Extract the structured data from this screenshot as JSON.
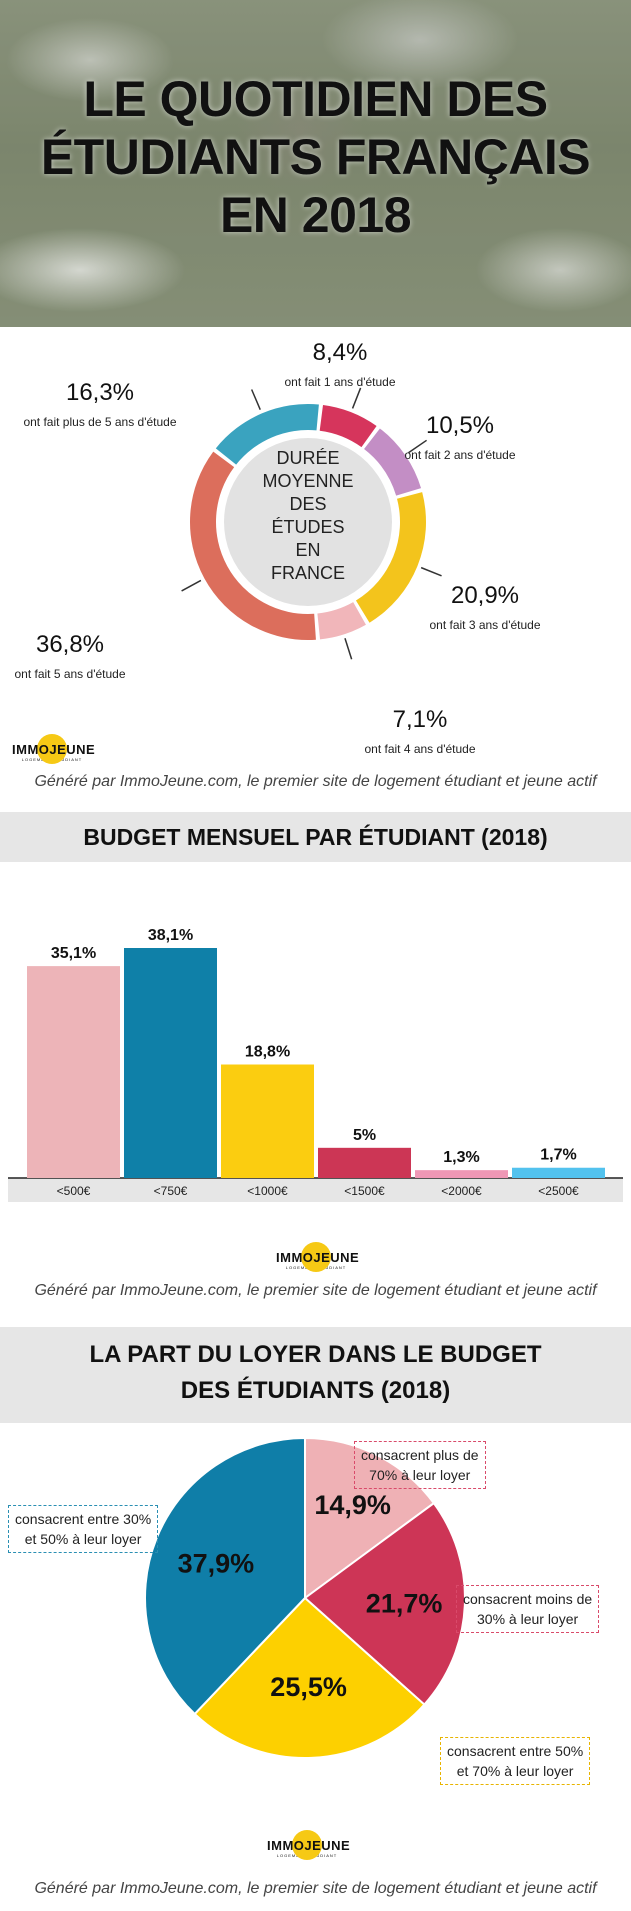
{
  "hero": {
    "title_lines": [
      "LE QUOTIDIEN  DES",
      "ÉTUDIANTS FRANÇAIS",
      "EN 2018"
    ]
  },
  "donut": {
    "center_lines": [
      "DURÉE",
      "MOYENNE",
      "DES",
      "ÉTUDES",
      "EN",
      "FRANCE"
    ]
  },
  "logo": {
    "name": "IMMOJEUNE",
    "tagline": "LOGEMENT ÉTUDIANT"
  },
  "credit": "Généré par ImmoJeune.com, le premier site de logement étudiant et jeune actif",
  "sections": {
    "budget_title": "BUDGET MENSUEL PAR ÉTUDIANT (2018)",
    "rent_title_lines": [
      "LA PART DU LOYER DANS LE BUDGET",
      "DES ÉTUDIANTS (2018)"
    ]
  },
  "chart_data": [
    {
      "type": "pie",
      "variant": "donut",
      "slices": [
        {
          "value": 8.4,
          "value_label": "8,4%",
          "label": "ont fait 1 ans d'étude",
          "color": "#d6355c"
        },
        {
          "value": 10.5,
          "value_label": "10,5%",
          "label": "ont fait 2 ans d'étude",
          "color": "#c38ec5"
        },
        {
          "value": 20.9,
          "value_label": "20,9%",
          "label": "ont fait 3 ans d'étude",
          "color": "#f3c41c"
        },
        {
          "value": 7.1,
          "value_label": "7,1%",
          "label": "ont fait 4 ans d'étude",
          "color": "#f1b6ba"
        },
        {
          "value": 36.8,
          "value_label": "36,8%",
          "label": "ont fait 5 ans d'étude",
          "color": "#dc6e5c"
        },
        {
          "value": 16.3,
          "value_label": "16,3%",
          "label": "ont fait plus de 5 ans d'étude",
          "color": "#3aa3bf"
        }
      ]
    },
    {
      "type": "bar",
      "title": "BUDGET MENSUEL PAR ÉTUDIANT (2018)",
      "categories": [
        "<500€",
        "<750€",
        "<1000€",
        "<1500€",
        "<2000€",
        "<2500€"
      ],
      "values": [
        35.1,
        38.1,
        18.8,
        5,
        1.3,
        1.7
      ],
      "value_labels": [
        "35,1%",
        "38,1%",
        "18,8%",
        "5%",
        "1,3%",
        "1,7%"
      ],
      "colors": [
        "#edb4b8",
        "#0f80a8",
        "#fbcd10",
        "#cc3655",
        "#ef97b5",
        "#52c2ee"
      ],
      "ylim": [
        0,
        40
      ]
    },
    {
      "type": "pie",
      "title": "LA PART DU LOYER DANS LE BUDGET DES ÉTUDIANTS (2018)",
      "slices": [
        {
          "value": 14.9,
          "value_label": "14,9%",
          "label_lines": [
            "consacrent plus de",
            "70% à leur loyer"
          ],
          "color": "#efb1b5"
        },
        {
          "value": 21.7,
          "value_label": "21,7%",
          "label_lines": [
            "consacrent moins de",
            "30% à leur loyer"
          ],
          "color": "#cd3556"
        },
        {
          "value": 25.5,
          "value_label": "25,5%",
          "label_lines": [
            "consacrent entre 50%",
            "et 70% à leur loyer"
          ],
          "color": "#fdd000"
        },
        {
          "value": 37.9,
          "value_label": "37,9%",
          "label_lines": [
            "consacrent entre 30%",
            "et 50% à leur loyer"
          ],
          "color": "#0f7ea8"
        }
      ]
    }
  ]
}
